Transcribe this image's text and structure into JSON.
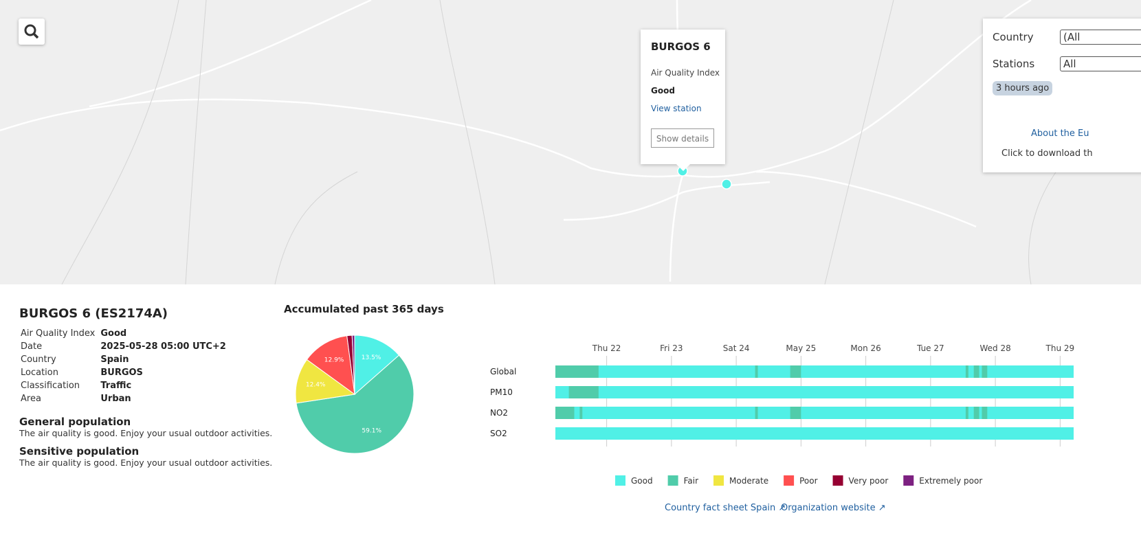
{
  "popup": {
    "title": "BURGOS 6",
    "index_label": "Air Quality Index",
    "index_value": "Good",
    "link": "View station",
    "button": "Show details"
  },
  "filters": {
    "country_label": "Country",
    "country_value": "(All",
    "stations_label": "Stations",
    "stations_value": "All",
    "updated": "3 hours ago",
    "about_link": "About the Eu",
    "download_text": "Click to download th"
  },
  "station": {
    "title": "BURGOS 6 (ES2174A)",
    "rows": [
      [
        "Air Quality Index",
        "Good"
      ],
      [
        "Date",
        "2025-05-28 05:00 UTC+2"
      ],
      [
        "Country",
        "Spain"
      ],
      [
        "Location",
        "BURGOS"
      ],
      [
        "Classification",
        "Traffic"
      ],
      [
        "Area",
        "Urban"
      ]
    ]
  },
  "advice": [
    {
      "heading": "General population",
      "text": "The air quality is good. Enjoy your usual outdoor activities."
    },
    {
      "heading": "Sensitive population",
      "text": "The air quality is good. Enjoy your usual outdoor activities."
    }
  ],
  "chart_data": [
    {
      "type": "pie",
      "title": "Accumulated past 365 days",
      "values": [
        13.5,
        59.1,
        12.4,
        12.9,
        1.4,
        0.7
      ],
      "value_labels": [
        "13.5%",
        "59.1%",
        "12.4%",
        "12.9%",
        null,
        null
      ],
      "colors": [
        "#50f0e6",
        "#50ccaa",
        "#f0e641",
        "#ff5050",
        "#960032",
        "#7d2181"
      ]
    },
    {
      "type": "timeline",
      "xlim": [
        0,
        192
      ],
      "xticks": [
        {
          "value": 19,
          "label": "Thu 22"
        },
        {
          "value": 43,
          "label": "Fri 23"
        },
        {
          "value": 67,
          "label": "Sat 24"
        },
        {
          "value": 91,
          "label": "May 25"
        },
        {
          "value": 115,
          "label": "Mon 26"
        },
        {
          "value": 139,
          "label": "Tue 27"
        },
        {
          "value": 163,
          "label": "Wed 28"
        },
        {
          "value": 187,
          "label": "Thu 29"
        }
      ],
      "rows": [
        {
          "name": "Global",
          "fair_periods": [
            [
              0,
              16
            ],
            [
              74,
              75
            ],
            [
              87,
              91
            ],
            [
              152,
              153
            ],
            [
              155,
              157
            ],
            [
              158,
              160
            ]
          ]
        },
        {
          "name": "PM10",
          "fair_periods": [
            [
              5,
              16
            ]
          ]
        },
        {
          "name": "NO2",
          "fair_periods": [
            [
              0,
              7
            ],
            [
              9,
              10
            ],
            [
              74,
              75
            ],
            [
              87,
              91
            ],
            [
              152,
              153
            ],
            [
              155,
              157
            ],
            [
              158,
              160
            ]
          ]
        },
        {
          "name": "SO2",
          "fair_periods": []
        }
      ],
      "legend": [
        {
          "name": "Good",
          "color": "#50f0e6"
        },
        {
          "name": "Fair",
          "color": "#50ccaa"
        },
        {
          "name": "Moderate",
          "color": "#f0e641"
        },
        {
          "name": "Poor",
          "color": "#ff5050"
        },
        {
          "name": "Very poor",
          "color": "#960032"
        },
        {
          "name": "Extremely poor",
          "color": "#7d2181"
        }
      ]
    }
  ],
  "links": [
    "Country fact sheet Spain",
    "Organization website"
  ]
}
